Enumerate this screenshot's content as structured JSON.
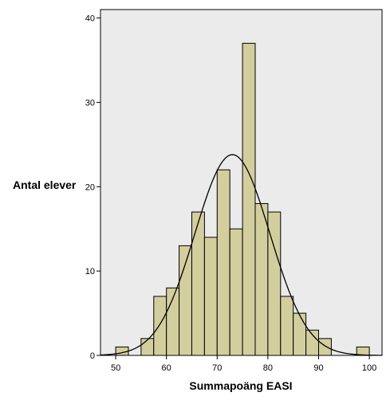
{
  "chart_data": {
    "type": "bar",
    "subtype": "histogram",
    "xlabel": "Summapoäng EASI",
    "ylabel": "Antal elever",
    "xlim": [
      47,
      102.5
    ],
    "ylim": [
      0,
      41
    ],
    "xticks": [
      "50",
      "60",
      "70",
      "80",
      "90",
      "100"
    ],
    "yticks": [
      "0",
      "10",
      "20",
      "30",
      "40"
    ],
    "bin_width": 2.5,
    "bins": [
      {
        "x0": 50,
        "x1": 52.5,
        "count": 1
      },
      {
        "x0": 55,
        "x1": 57.5,
        "count": 2
      },
      {
        "x0": 57.5,
        "x1": 60,
        "count": 7
      },
      {
        "x0": 60,
        "x1": 62.5,
        "count": 8
      },
      {
        "x0": 62.5,
        "x1": 65,
        "count": 13
      },
      {
        "x0": 65,
        "x1": 67.5,
        "count": 17
      },
      {
        "x0": 67.5,
        "x1": 70,
        "count": 14
      },
      {
        "x0": 70,
        "x1": 72.5,
        "count": 22
      },
      {
        "x0": 72.5,
        "x1": 75,
        "count": 15
      },
      {
        "x0": 75,
        "x1": 77.5,
        "count": 37
      },
      {
        "x0": 77.5,
        "x1": 80,
        "count": 18
      },
      {
        "x0": 80,
        "x1": 82.5,
        "count": 17
      },
      {
        "x0": 82.5,
        "x1": 85,
        "count": 7
      },
      {
        "x0": 85,
        "x1": 87.5,
        "count": 5
      },
      {
        "x0": 87.5,
        "x1": 90,
        "count": 3
      },
      {
        "x0": 90,
        "x1": 92.5,
        "count": 2
      },
      {
        "x0": 97.5,
        "x1": 100,
        "count": 1
      }
    ],
    "normal_curve": {
      "mean": 73,
      "sd": 7.4,
      "peak": 23.8
    },
    "bar_fill": "#d3ce9e",
    "bar_stroke": "#000000",
    "plot_background": "#ebebeb",
    "curve_color": "#000000",
    "grid": false,
    "legend": "none"
  }
}
